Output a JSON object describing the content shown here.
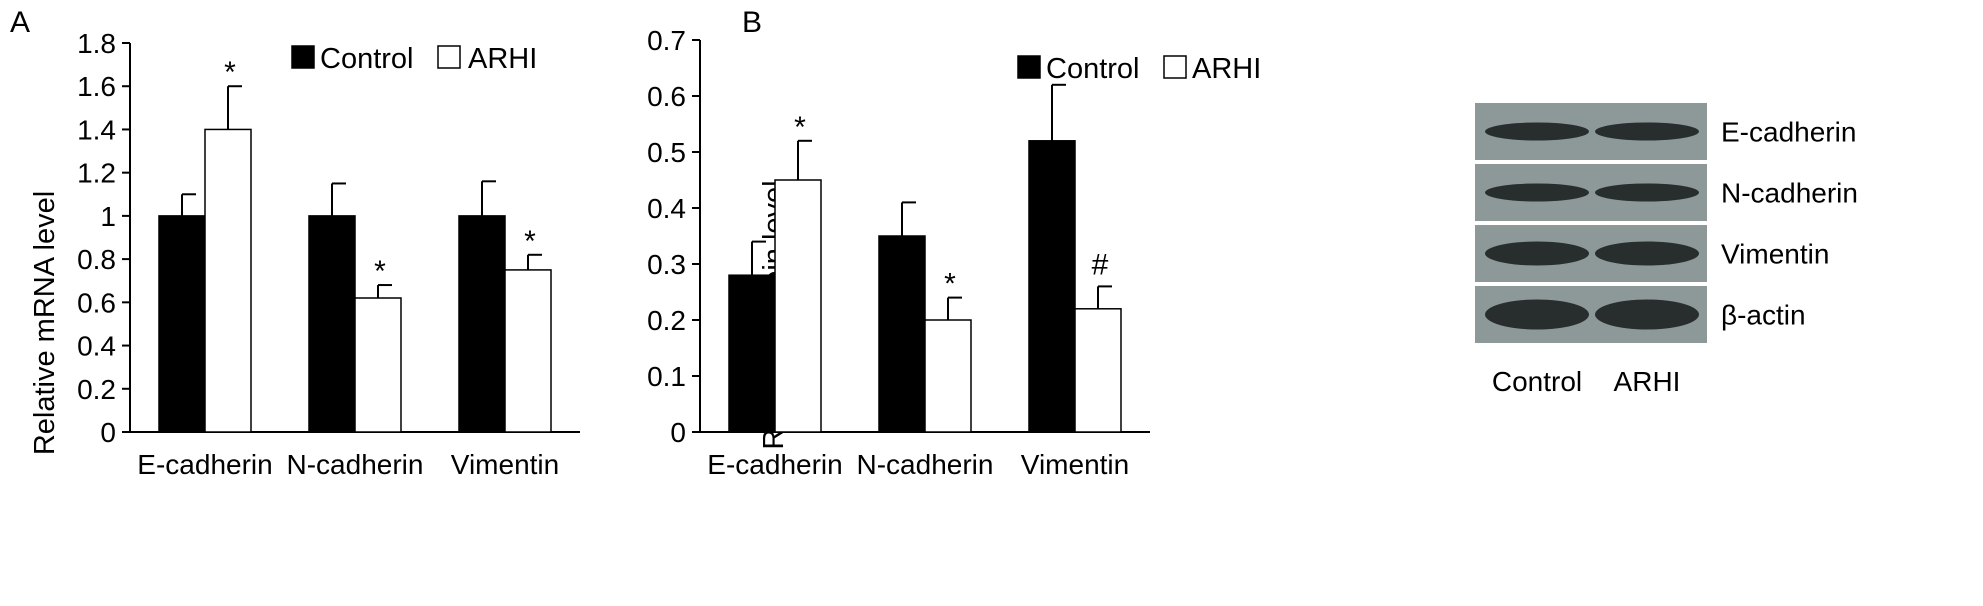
{
  "legend": {
    "control_label": "Control",
    "treatment_label": "ARHI"
  },
  "colors": {
    "control": "#000000",
    "treatment": "#ffffff",
    "blot_bg": "#8d9899",
    "blot_band": "#1f2425"
  },
  "chart_data": [
    {
      "panel": "A",
      "type": "bar",
      "ylabel": "Relative mRNA level",
      "xlabel": "",
      "ylim": [
        0,
        1.8
      ],
      "yticks": [
        "0",
        "0.2",
        "0.4",
        "0.6",
        "0.8",
        "1",
        "1.2",
        "1.4",
        "1.6",
        "1.8"
      ],
      "categories": [
        "E-cadherin",
        "N-cadherin",
        "Vimentin"
      ],
      "series": [
        {
          "name": "Control",
          "values": [
            1.0,
            1.0,
            1.0
          ],
          "errors": [
            0.1,
            0.15,
            0.16
          ],
          "annotations": [
            "",
            "",
            ""
          ]
        },
        {
          "name": "ARHI",
          "values": [
            1.4,
            0.62,
            0.75
          ],
          "errors": [
            0.2,
            0.06,
            0.07
          ],
          "annotations": [
            "*",
            "*",
            "*"
          ]
        }
      ],
      "legend_position": "top-center"
    },
    {
      "panel": "B",
      "type": "bar",
      "ylabel": "Relative protein level",
      "xlabel": "",
      "ylim": [
        0,
        0.7
      ],
      "yticks": [
        "0",
        "0.1",
        "0.2",
        "0.3",
        "0.4",
        "0.5",
        "0.6",
        "0.7"
      ],
      "categories": [
        "E-cadherin",
        "N-cadherin",
        "Vimentin"
      ],
      "series": [
        {
          "name": "Control",
          "values": [
            0.28,
            0.35,
            0.52
          ],
          "errors": [
            0.06,
            0.06,
            0.1
          ],
          "annotations": [
            "",
            "",
            ""
          ]
        },
        {
          "name": "ARHI",
          "values": [
            0.45,
            0.2,
            0.22
          ],
          "errors": [
            0.07,
            0.04,
            0.04
          ],
          "annotations": [
            "*",
            "*",
            "#"
          ]
        }
      ],
      "legend_position": "top-center"
    }
  ],
  "western_blot": {
    "rows": [
      "E-cadherin",
      "N-cadherin",
      "Vimentin",
      "β-actin"
    ],
    "lanes": [
      "Control",
      "ARHI"
    ]
  }
}
